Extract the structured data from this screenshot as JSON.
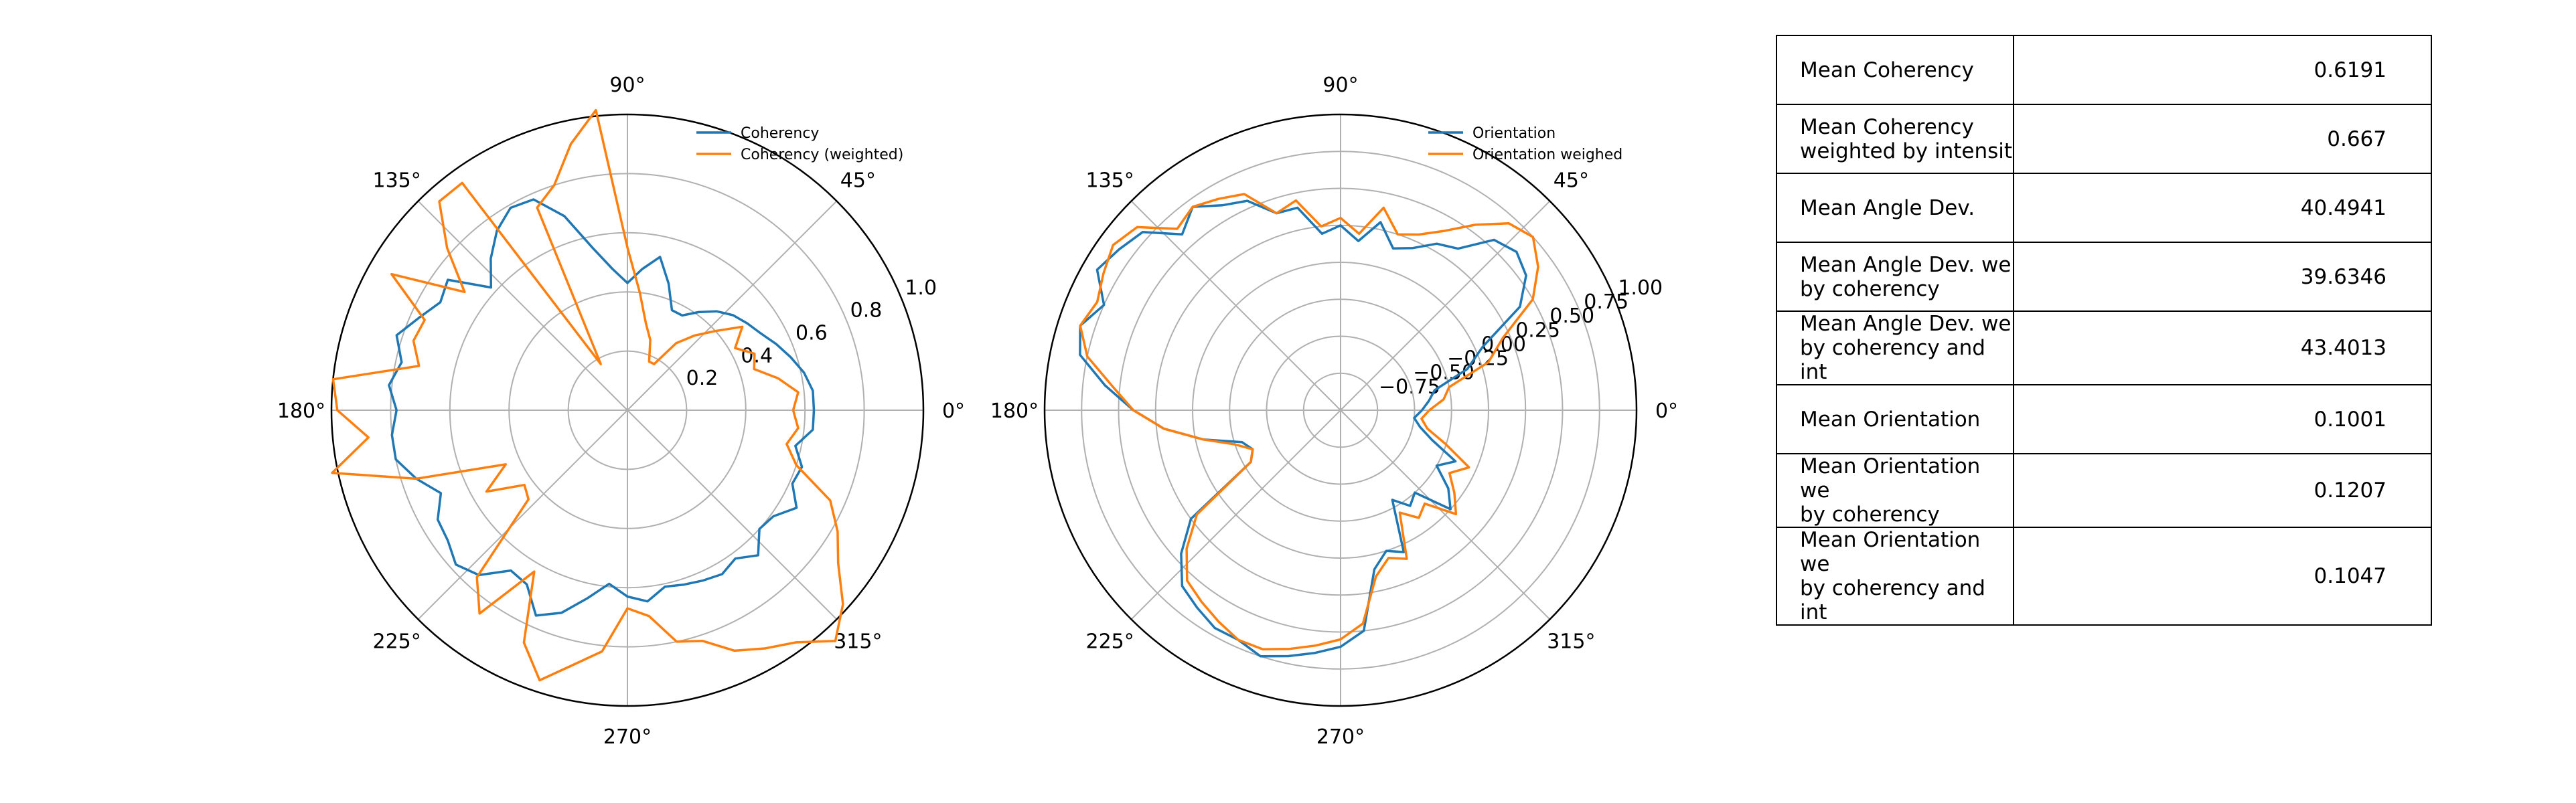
{
  "colors": {
    "series1": "#1f77b4",
    "series2": "#ff7f0e",
    "grid": "#b0b0b0",
    "axis": "#000000"
  },
  "chart_data": [
    {
      "type": "line",
      "projection": "polar",
      "title": "",
      "theta_unit": "degrees",
      "theta_ticks": [
        "0°",
        "45°",
        "90°",
        "135°",
        "180°",
        "225°",
        "270°",
        "315°"
      ],
      "r_ticks": [
        0.2,
        0.4,
        0.6,
        0.8,
        1.0
      ],
      "r_tick_labels": [
        "0.2",
        "0.4",
        "0.6",
        "0.8",
        "1.0"
      ],
      "rlim": [
        0,
        1.0
      ],
      "legend": "top-right",
      "series": [
        {
          "name": "Coherency",
          "theta": [
            0,
            6,
            12,
            18,
            24,
            30,
            36,
            42,
            48,
            54,
            60,
            66,
            72,
            78,
            84,
            90,
            96,
            102,
            108,
            114,
            120,
            126,
            132,
            138,
            144,
            150,
            156,
            162,
            168,
            174,
            180,
            186,
            192,
            198,
            204,
            210,
            216,
            222,
            228,
            234,
            240,
            246,
            252,
            258,
            264,
            270,
            276,
            282,
            288,
            294,
            300,
            306,
            312,
            318,
            324,
            330,
            336,
            342,
            348,
            354,
            360
          ],
          "r": [
            0.63,
            0.63,
            0.61,
            0.58,
            0.55,
            0.52,
            0.5,
            0.48,
            0.45,
            0.41,
            0.37,
            0.37,
            0.45,
            0.53,
            0.48,
            0.43,
            0.48,
            0.56,
            0.69,
            0.78,
            0.79,
            0.75,
            0.69,
            0.62,
            0.75,
            0.73,
            0.77,
            0.82,
            0.78,
            0.81,
            0.78,
            0.8,
            0.8,
            0.75,
            0.69,
            0.74,
            0.75,
            0.78,
            0.75,
            0.67,
            0.68,
            0.76,
            0.72,
            0.65,
            0.59,
            0.63,
            0.65,
            0.61,
            0.62,
            0.63,
            0.64,
            0.62,
            0.66,
            0.6,
            0.61,
            0.66,
            0.61,
            0.62,
            0.58,
            0.63,
            0.63
          ]
        },
        {
          "name": "Coherency (weighted)",
          "theta": [
            0,
            6,
            12,
            18,
            24,
            30,
            36,
            42,
            48,
            54,
            60,
            66,
            72,
            78,
            84,
            90,
            96,
            102,
            108,
            114,
            120,
            126,
            132,
            138,
            144,
            150,
            156,
            162,
            168,
            174,
            180,
            186,
            192,
            198,
            204,
            210,
            216,
            222,
            228,
            234,
            240,
            246,
            252,
            258,
            264,
            270,
            276,
            282,
            288,
            294,
            300,
            306,
            312,
            318,
            324,
            330,
            336,
            342,
            348,
            354,
            360
          ],
          "r": [
            0.56,
            0.58,
            0.52,
            0.45,
            0.47,
            0.42,
            0.48,
            0.4,
            0.34,
            0.28,
            0.18,
            0.18,
            0.25,
            0.3,
            0.4,
            0.55,
            1.02,
            0.92,
            0.8,
            0.75,
            0.18,
            0.95,
            0.95,
            0.82,
            0.68,
            0.92,
            0.75,
            0.76,
            0.72,
            1.0,
            0.98,
            0.88,
            1.02,
            0.75,
            0.45,
            0.55,
            0.43,
            0.45,
            0.76,
            0.85,
            0.63,
            0.86,
            0.96,
            0.88,
            0.82,
            0.67,
            0.7,
            0.8,
            0.82,
            0.89,
            0.93,
            0.97,
            1.05,
            0.98,
            0.88,
            0.82,
            0.75,
            0.6,
            0.55,
            0.58,
            0.56
          ]
        }
      ]
    },
    {
      "type": "line",
      "projection": "polar",
      "title": "",
      "theta_unit": "degrees",
      "theta_ticks": [
        "0°",
        "45°",
        "90°",
        "135°",
        "180°",
        "225°",
        "270°",
        "315°"
      ],
      "r_ticks": [
        -0.75,
        -0.5,
        -0.25,
        0.0,
        0.25,
        0.5,
        0.75,
        1.0
      ],
      "r_tick_labels": [
        "−0.75",
        "−0.50",
        "−0.25",
        "0.00",
        "0.25",
        "0.50",
        "0.75",
        "1.00"
      ],
      "rlim": [
        -1.0,
        1.0
      ],
      "legend": "top-right",
      "series": [
        {
          "name": "Orientation",
          "theta": [
            0,
            6,
            12,
            18,
            24,
            30,
            36,
            42,
            48,
            54,
            60,
            66,
            72,
            78,
            84,
            90,
            96,
            102,
            108,
            114,
            120,
            126,
            132,
            138,
            144,
            150,
            156,
            162,
            168,
            174,
            180,
            186,
            192,
            198,
            204,
            210,
            216,
            222,
            228,
            234,
            240,
            246,
            252,
            258,
            264,
            270,
            276,
            282,
            288,
            294,
            300,
            306,
            312,
            318,
            324,
            330,
            336,
            342,
            348,
            354,
            360
          ],
          "r": [
            -0.45,
            -0.4,
            -0.35,
            -0.1,
            0.05,
            0.4,
            0.55,
            0.6,
            0.55,
            0.35,
            0.3,
            0.2,
            0.15,
            0.3,
            0.15,
            0.25,
            0.2,
            0.4,
            0.4,
            0.55,
            0.6,
            0.7,
            0.6,
            0.8,
            0.85,
            0.9,
            0.75,
            0.85,
            0.8,
            0.6,
            0.4,
            0.2,
            -0.05,
            -0.3,
            -0.35,
            -0.3,
            0.25,
            0.45,
            0.6,
            0.65,
            0.7,
            0.7,
            0.75,
            0.7,
            0.65,
            0.6,
            0.5,
            0.1,
            0.0,
            0.05,
            -0.3,
            -0.2,
            -0.25,
            0.0,
            -0.1,
            -0.25,
            -0.15,
            -0.35,
            -0.45,
            -0.5,
            -0.45
          ]
        },
        {
          "name": "Orientation weighed",
          "theta": [
            0,
            6,
            12,
            18,
            24,
            30,
            36,
            42,
            48,
            54,
            60,
            66,
            72,
            78,
            84,
            90,
            96,
            102,
            108,
            114,
            120,
            126,
            132,
            138,
            144,
            150,
            156,
            162,
            168,
            174,
            180,
            186,
            192,
            198,
            204,
            210,
            216,
            222,
            228,
            234,
            240,
            246,
            252,
            258,
            264,
            270,
            276,
            282,
            288,
            294,
            300,
            306,
            312,
            318,
            324,
            330,
            336,
            342,
            348,
            354,
            360
          ],
          "r": [
            -0.4,
            -0.3,
            -0.25,
            0.05,
            0.2,
            0.5,
            0.65,
            0.75,
            0.7,
            0.55,
            0.4,
            0.3,
            0.25,
            0.4,
            0.2,
            0.3,
            0.25,
            0.45,
            0.4,
            0.6,
            0.65,
            0.7,
            0.65,
            0.85,
            0.9,
            0.85,
            0.8,
            0.85,
            0.75,
            0.55,
            0.4,
            0.2,
            -0.05,
            -0.25,
            -0.35,
            -0.3,
            0.2,
            0.4,
            0.55,
            0.6,
            0.65,
            0.7,
            0.7,
            0.65,
            0.6,
            0.55,
            0.45,
            0.15,
            0.05,
            0.1,
            -0.2,
            -0.1,
            -0.15,
            0.05,
            -0.05,
            -0.15,
            -0.05,
            -0.25,
            -0.4,
            -0.45,
            -0.4
          ]
        }
      ]
    },
    {
      "type": "table",
      "rows": [
        {
          "label": "Mean Coherency",
          "value": "0.6191"
        },
        {
          "label": "Mean Coherency\nweighted by intensit",
          "value": "0.667"
        },
        {
          "label": "Mean Angle Dev.",
          "value": "40.4941"
        },
        {
          "label": "Mean Angle Dev. we\nby coherency",
          "value": "39.6346"
        },
        {
          "label": "Mean Angle Dev. we\nby coherency and int",
          "value": "43.4013"
        },
        {
          "label": "Mean Orientation",
          "value": "0.1001"
        },
        {
          "label": "Mean Orientation we\nby coherency",
          "value": "0.1207"
        },
        {
          "label": "Mean Orientation we\nby coherency and int",
          "value": "0.1047"
        }
      ]
    }
  ]
}
